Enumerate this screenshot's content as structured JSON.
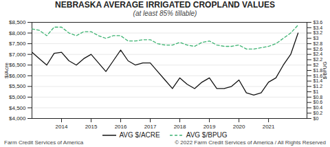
{
  "chart_data": {
    "type": "line",
    "title": "NEBRASKA AVERAGE IRRIGATED CROPLAND VALUES",
    "subtitle": "(at least 85% tillable)",
    "ylabel": "$/Acre",
    "y2label": "$/BPUG",
    "annotations": [
      "Farm Credit Services of America",
      "© 2022 Farm Credit Services of America / All Rights Reserved"
    ],
    "x": [
      2013.0,
      2013.25,
      2013.5,
      2013.75,
      2014.0,
      2014.25,
      2014.5,
      2014.75,
      2015.0,
      2015.25,
      2015.5,
      2015.75,
      2016.0,
      2016.25,
      2016.5,
      2016.75,
      2017.0,
      2017.25,
      2017.5,
      2017.75,
      2018.0,
      2018.25,
      2018.5,
      2018.75,
      2019.0,
      2019.25,
      2019.5,
      2019.75,
      2020.0,
      2020.25,
      2020.5,
      2020.75,
      2021.0,
      2021.25,
      2021.5,
      2021.75,
      2022.0
    ],
    "series": [
      {
        "name": "AVG $/ACRE",
        "color": "#111111",
        "line_style": "solid",
        "values": [
          7100,
          6800,
          6500,
          7050,
          7100,
          6700,
          6500,
          6800,
          7000,
          6600,
          6200,
          6700,
          7200,
          6700,
          6500,
          6600,
          6600,
          6200,
          5800,
          5400,
          5900,
          5600,
          5400,
          5700,
          5900,
          5400,
          5400,
          5500,
          5800,
          5200,
          5100,
          5200,
          5700,
          5900,
          6500,
          7000,
          8000
        ]
      },
      {
        "name": "AVG $/BPUG",
        "color": "#3cb371",
        "line_style": "dashed",
        "axis": "y2",
        "values": [
          3.35,
          3.3,
          3.1,
          3.42,
          3.42,
          3.2,
          3.1,
          3.25,
          3.25,
          3.1,
          3.0,
          3.1,
          3.1,
          2.9,
          2.9,
          2.95,
          2.95,
          2.8,
          2.75,
          2.75,
          2.85,
          2.75,
          2.7,
          2.85,
          2.9,
          2.75,
          2.7,
          2.7,
          2.75,
          2.6,
          2.6,
          2.65,
          2.7,
          2.8,
          3.0,
          3.2,
          3.5
        ]
      }
    ],
    "xlim": [
      2013.0,
      2022.3
    ],
    "xticks": [
      2014,
      2015,
      2016,
      2017,
      2018,
      2019,
      2020,
      2021
    ],
    "ylim": [
      4000,
      8500
    ],
    "yticks": [
      {
        "value": 4000,
        "label": "$4,000"
      },
      {
        "value": 4500,
        "label": "$4,500"
      },
      {
        "value": 5000,
        "label": "$5,000"
      },
      {
        "value": 5500,
        "label": "$5,500"
      },
      {
        "value": 6000,
        "label": "$6,000"
      },
      {
        "value": 6500,
        "label": "$6,500"
      },
      {
        "value": 7000,
        "label": "$7,000"
      },
      {
        "value": 7500,
        "label": "$7,500"
      },
      {
        "value": 8000,
        "label": "$8,000"
      },
      {
        "value": 8500,
        "label": "$8,500"
      }
    ],
    "y2lim": [
      0,
      3.6
    ],
    "y2ticks": [
      {
        "value": 0,
        "label": "$0"
      },
      {
        "value": 0.2,
        "label": "$0.2"
      },
      {
        "value": 0.4,
        "label": "$0.4"
      },
      {
        "value": 0.6,
        "label": "$0.6"
      },
      {
        "value": 0.8,
        "label": "$0.8"
      },
      {
        "value": 1.0,
        "label": "$1"
      },
      {
        "value": 1.2,
        "label": "$1.2"
      },
      {
        "value": 1.4,
        "label": "$1.4"
      },
      {
        "value": 1.6,
        "label": "$1.6"
      },
      {
        "value": 1.8,
        "label": "$1.8"
      },
      {
        "value": 2.0,
        "label": "$2"
      },
      {
        "value": 2.2,
        "label": "$2.2"
      },
      {
        "value": 2.4,
        "label": "$2.4"
      },
      {
        "value": 2.6,
        "label": "$2.6"
      },
      {
        "value": 2.8,
        "label": "$2.8"
      },
      {
        "value": 3.0,
        "label": "$3"
      },
      {
        "value": 3.2,
        "label": "$3.2"
      },
      {
        "value": 3.4,
        "label": "$3.4"
      },
      {
        "value": 3.6,
        "label": "$3.6"
      }
    ],
    "grid": true,
    "legend": "bottom"
  }
}
